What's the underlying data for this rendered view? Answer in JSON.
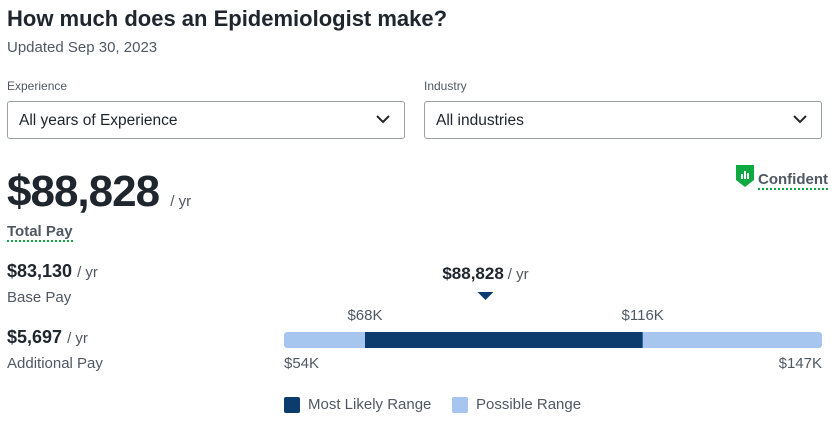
{
  "header": {
    "title": "How much does an Epidemiologist make?",
    "updated": "Updated Sep 30, 2023"
  },
  "filters": [
    {
      "label": "Experience",
      "selected": "All years of Experience"
    },
    {
      "label": "Industry",
      "selected": "All industries"
    }
  ],
  "confidence": "Confident",
  "total_pay": {
    "amount": "$88,828",
    "unit": "/ yr",
    "label": "Total Pay"
  },
  "base_pay": {
    "amount": "$83,130",
    "unit": "/ yr",
    "label": "Base Pay"
  },
  "additional_pay": {
    "amount": "$5,697",
    "unit": "/ yr",
    "label": "Additional Pay"
  },
  "range": {
    "median": {
      "value": 88828,
      "label": "$88,828"
    },
    "median_unit": "/ yr",
    "min": {
      "value": 54000,
      "label": "$54K"
    },
    "likely_low": {
      "value": 68000,
      "label": "$68K"
    },
    "likely_high": {
      "value": 116000,
      "label": "$116K"
    },
    "max": {
      "value": 147000,
      "label": "$147K"
    },
    "likely_color": "#0c3b6e",
    "possible_color": "#a6c6f0",
    "legend": [
      "Most Likely Range",
      "Possible Range"
    ]
  }
}
